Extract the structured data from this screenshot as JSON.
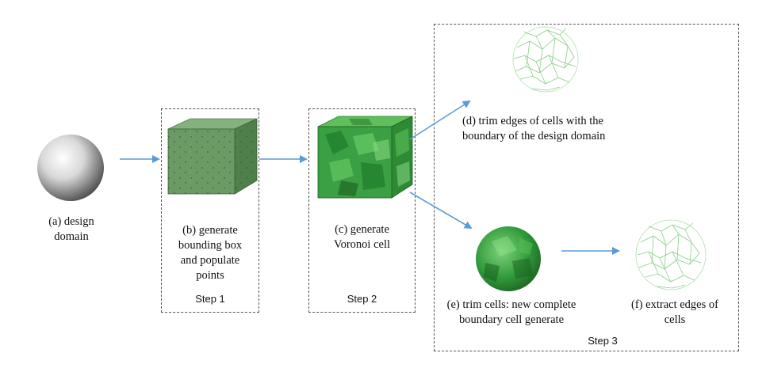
{
  "labels": {
    "a": "(a) design\ndomain",
    "b": "(b) generate\nbounding box\nand populate\npoints",
    "c": "(c) generate\nVoronoi cell",
    "d": "(d)  trim edges of cells with the\nboundary of the design domain",
    "e": "(e) trim cells: new complete\nboundary cell generate",
    "f": "(f) extract edges of\ncells"
  },
  "steps": {
    "s1": "Step 1",
    "s2": "Step 2",
    "s3": "Step 3"
  },
  "colors": {
    "arrow": "#5b9bd5",
    "green_dark": "#2e7d32",
    "green_light": "#66bb6a",
    "box_green": "#6a9a64",
    "border": "#555555"
  }
}
